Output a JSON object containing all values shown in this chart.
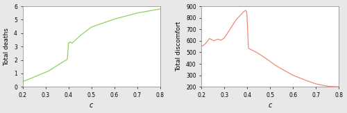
{
  "xlim": [
    0.2,
    0.8
  ],
  "left_ylim": [
    0,
    6
  ],
  "right_ylim": [
    200,
    900
  ],
  "left_yticks": [
    0,
    1,
    2,
    3,
    4,
    5,
    6
  ],
  "right_yticks": [
    200,
    300,
    400,
    500,
    600,
    700,
    800,
    900
  ],
  "left_xticks": [
    0.2,
    0.3,
    0.4,
    0.5,
    0.6,
    0.7,
    0.8
  ],
  "right_xticks": [
    0.2,
    0.3,
    0.4,
    0.5,
    0.6,
    0.7,
    0.8
  ],
  "xlabel": "c",
  "left_ylabel": "Total deaths",
  "right_ylabel": "Total discomfort",
  "left_line_color": "#90d060",
  "right_line_color": "#f08878",
  "background_color": "#e8e8e8",
  "axes_bg_color": "#ffffff",
  "figsize": [
    5.0,
    1.63
  ],
  "dpi": 100
}
